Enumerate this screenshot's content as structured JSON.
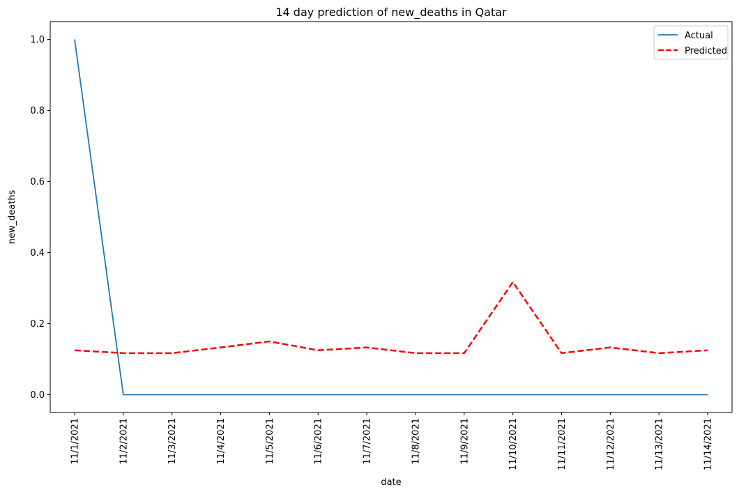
{
  "chart_data": {
    "type": "line",
    "title": "14 day prediction of new_deaths in Qatar",
    "xlabel": "date",
    "ylabel": "new_deaths",
    "categories": [
      "11/1/2021",
      "11/2/2021",
      "11/3/2021",
      "11/4/2021",
      "11/5/2021",
      "11/6/2021",
      "11/7/2021",
      "11/8/2021",
      "11/9/2021",
      "11/10/2021",
      "11/11/2021",
      "11/12/2021",
      "11/13/2021",
      "11/14/2021"
    ],
    "series": [
      {
        "name": "Actual",
        "color": "#1f77b4",
        "style": "solid",
        "values": [
          1.0,
          0,
          0,
          0,
          0,
          0,
          0,
          0,
          0,
          0,
          0,
          0,
          0,
          0
        ]
      },
      {
        "name": "Predicted",
        "color": "#ff0000",
        "style": "dashed",
        "values": [
          0.125,
          0.117,
          0.117,
          0.133,
          0.15,
          0.125,
          0.133,
          0.117,
          0.117,
          0.317,
          0.117,
          0.133,
          0.117,
          0.125
        ]
      }
    ],
    "ylim": [
      -0.05,
      1.05
    ],
    "yticks": [
      0.0,
      0.2,
      0.4,
      0.6,
      0.8,
      1.0
    ],
    "ytick_labels": [
      "0.0",
      "0.2",
      "0.4",
      "0.6",
      "0.8",
      "1.0"
    ],
    "grid": false,
    "legend": "top-right"
  }
}
